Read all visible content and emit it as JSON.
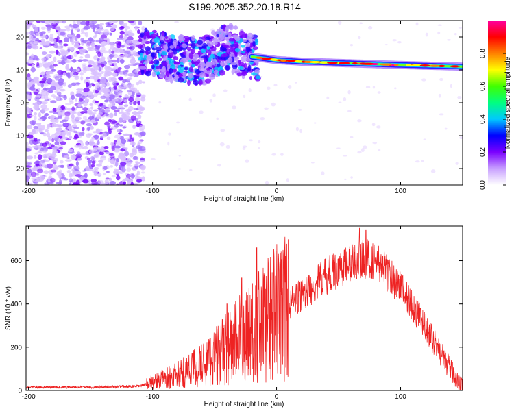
{
  "chart_data": [
    {
      "type": "heatmap",
      "title": "S199.2025.352.20.18.R14",
      "xlabel": "Height of straight line (km)",
      "ylabel": "Frequency (Hz)",
      "xlim": [
        -202,
        150
      ],
      "ylim": [
        -25,
        25
      ],
      "xticks": [
        -200,
        -100,
        0,
        100
      ],
      "yticks": [
        -20,
        -10,
        0,
        10,
        20
      ],
      "colorbar": {
        "label": "Normalized spectral amplitude",
        "range": [
          0,
          1
        ],
        "ticks": [
          0.0,
          0.2,
          0.4,
          0.6,
          0.8
        ],
        "colors": [
          "#ffffff",
          "#c8a0ff",
          "#7a00ff",
          "#0000ff",
          "#00c8ff",
          "#00ff80",
          "#40ff00",
          "#ffff00",
          "#ff8000",
          "#ff0000",
          "#ff00a0"
        ]
      },
      "ridge": {
        "description": "dominant frequency line",
        "points": [
          [
            -110,
            16
          ],
          [
            -80,
            13
          ],
          [
            -60,
            12.5
          ],
          [
            -40,
            17
          ],
          [
            -30,
            15.5
          ],
          [
            -20,
            14
          ],
          [
            0,
            13
          ],
          [
            20,
            12.5
          ],
          [
            60,
            12
          ],
          [
            100,
            11.5
          ],
          [
            150,
            11
          ]
        ]
      },
      "noise_region_x": [
        -202,
        -107
      ]
    },
    {
      "type": "line",
      "xlabel": "Height of straight line (km)",
      "ylabel": "SNR (10 * v/v)",
      "xlim": [
        -202,
        150
      ],
      "ylim": [
        0,
        760
      ],
      "xticks": [
        -200,
        -100,
        0,
        100
      ],
      "yticks": [
        0,
        200,
        400,
        600
      ],
      "series": [
        {
          "name": "SNR",
          "color": "#ee2222",
          "envelope_x": [
            -202,
            -150,
            -110,
            -100,
            -80,
            -60,
            -40,
            -20,
            0,
            20,
            40,
            60,
            70,
            80,
            100,
            120,
            140,
            150
          ],
          "envelope_y": [
            15,
            15,
            20,
            40,
            70,
            120,
            190,
            280,
            360,
            440,
            530,
            590,
            610,
            600,
            480,
            290,
            100,
            10
          ],
          "spikes": [
            [
              -40,
              400
            ],
            [
              -28,
              520
            ],
            [
              -16,
              660
            ],
            [
              -13,
              310
            ],
            [
              67,
              750
            ],
            [
              72,
              740
            ]
          ]
        }
      ]
    }
  ]
}
